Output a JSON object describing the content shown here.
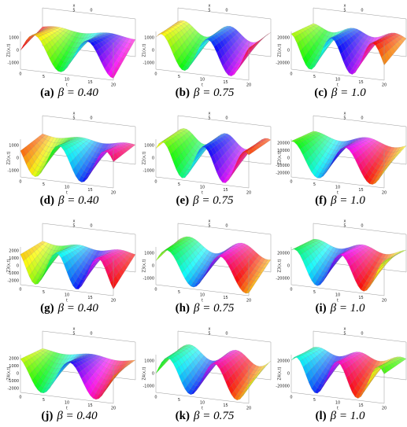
{
  "panels": [
    {
      "label": "(a)",
      "caption": "β = 0.40",
      "z_label": "Z1(x,t)",
      "z_ticks": [
        "1000",
        "0",
        "-1000"
      ],
      "t_label": "t",
      "t_ticks": [
        "0",
        "5",
        "10",
        "15",
        "20"
      ],
      "x_label": "x",
      "x_ticks": [
        "5",
        "0"
      ]
    },
    {
      "label": "(b)",
      "caption": "β = 0.75",
      "z_label": "Z1(x,t)",
      "z_ticks": [
        "1000",
        "0",
        "-1000"
      ],
      "t_label": "t",
      "t_ticks": [
        "0",
        "5",
        "10",
        "15",
        "20"
      ],
      "x_label": "x",
      "x_ticks": [
        "5",
        "0"
      ]
    },
    {
      "label": "(c)",
      "caption": "β = 1.0",
      "z_label": "Z1(x,t)",
      "z_ticks": [
        "20000",
        "0",
        "-20000"
      ],
      "t_label": "t",
      "t_ticks": [
        "0",
        "5",
        "10",
        "15",
        "20"
      ],
      "x_label": "x",
      "x_ticks": [
        "5",
        "0"
      ]
    },
    {
      "label": "(d)",
      "caption": "β = 0.40",
      "z_label": "Z2(x,t)",
      "z_ticks": [
        "1000",
        "0",
        "-1000"
      ],
      "t_label": "t",
      "t_ticks": [
        "0",
        "5",
        "10",
        "15",
        "20"
      ],
      "x_label": "x",
      "x_ticks": [
        "5",
        "0"
      ]
    },
    {
      "label": "(e)",
      "caption": "β = 0.75",
      "z_label": "Z2(x,t)",
      "z_ticks": [
        "1000",
        "0",
        "-1000"
      ],
      "t_label": "t",
      "t_ticks": [
        "0",
        "5",
        "10",
        "15",
        "20"
      ],
      "x_label": "x",
      "x_ticks": [
        "5",
        "0"
      ]
    },
    {
      "label": "(f)",
      "caption": "β = 1.0",
      "z_label": "Z2(x,t)",
      "z_ticks": [
        "20000",
        "10000",
        "0",
        "-10000",
        "-20000"
      ],
      "t_label": "t",
      "t_ticks": [
        "0",
        "5",
        "10",
        "15",
        "20"
      ],
      "x_label": "x",
      "x_ticks": [
        "5",
        "0"
      ]
    },
    {
      "label": "(g)",
      "caption": "β = 0.40",
      "z_label": "Z3(x,t)",
      "z_ticks": [
        "2000",
        "1000",
        "0",
        "-1000",
        "-2000"
      ],
      "t_label": "t",
      "t_ticks": [
        "0",
        "5",
        "10",
        "15",
        "20"
      ],
      "x_label": "x",
      "x_ticks": [
        "5",
        "0"
      ]
    },
    {
      "label": "(h)",
      "caption": "β = 0.75",
      "z_label": "Z3(x,t)",
      "z_ticks": [
        "1000",
        "0",
        "-1000"
      ],
      "t_label": "t",
      "t_ticks": [
        "0",
        "5",
        "10",
        "15",
        "20"
      ],
      "x_label": "x",
      "x_ticks": [
        "5",
        "0"
      ]
    },
    {
      "label": "(i)",
      "caption": "β = 1.0",
      "z_label": "Z3(x,t)",
      "z_ticks": [
        "20000",
        "0",
        "-20000"
      ],
      "t_label": "t",
      "t_ticks": [
        "0",
        "5",
        "10",
        "15",
        "20"
      ],
      "x_label": "x",
      "x_ticks": [
        "5",
        "0"
      ]
    },
    {
      "label": "(j)",
      "caption": "β = 0.40",
      "z_label": "Z4(x,t)",
      "z_ticks": [
        "2000",
        "1000",
        "0",
        "-1000",
        "-2000"
      ],
      "t_label": "t",
      "t_ticks": [
        "0",
        "5",
        "10",
        "15",
        "20"
      ],
      "x_label": "x",
      "x_ticks": [
        "5",
        "0"
      ]
    },
    {
      "label": "(k)",
      "caption": "β = 0.75",
      "z_label": "Z4(x,t)",
      "z_ticks": [
        "1000",
        "0",
        "-1000"
      ],
      "t_label": "t",
      "t_ticks": [
        "0",
        "5",
        "10",
        "15",
        "20"
      ],
      "x_label": "x",
      "x_ticks": [
        "5",
        "0"
      ]
    },
    {
      "label": "(l)",
      "caption": "β = 1.0",
      "z_label": "Z4(x,t)",
      "z_ticks": [
        "20000",
        "0",
        "-20000"
      ],
      "t_label": "t",
      "t_ticks": [
        "0",
        "5",
        "10",
        "15",
        "20"
      ],
      "x_label": "x",
      "x_ticks": [
        "5",
        "0"
      ]
    }
  ]
}
